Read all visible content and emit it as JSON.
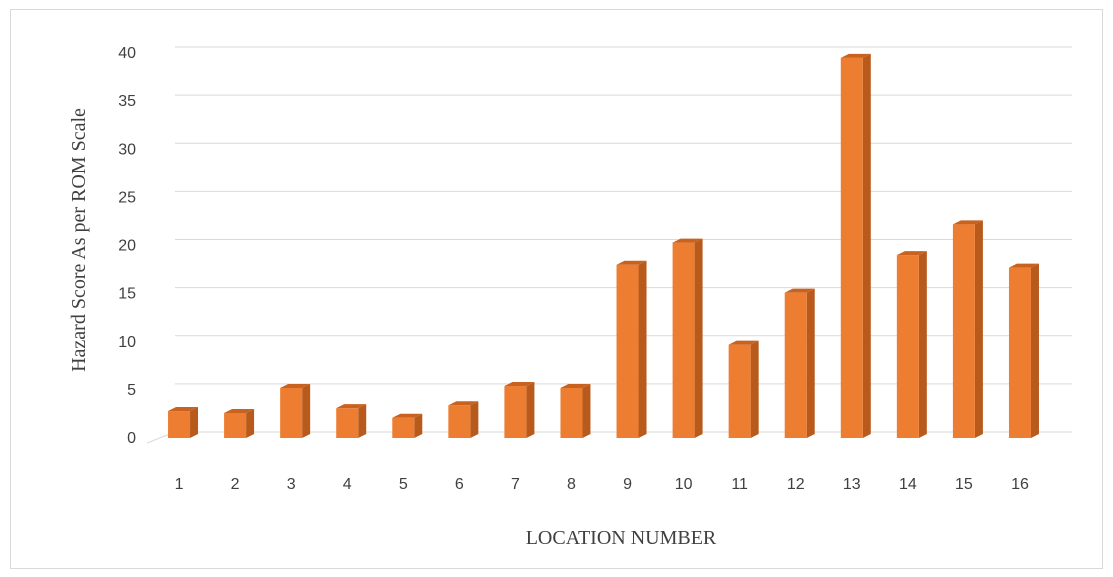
{
  "chart_data": {
    "type": "bar",
    "style": "3d-column",
    "categories": [
      "1",
      "2",
      "3",
      "4",
      "5",
      "6",
      "7",
      "8",
      "9",
      "10",
      "11",
      "12",
      "13",
      "14",
      "15",
      "16"
    ],
    "values": [
      2.8,
      2.6,
      5.2,
      3.1,
      2.1,
      3.4,
      5.4,
      5.2,
      18.0,
      20.3,
      9.7,
      15.1,
      39.5,
      19.0,
      22.2,
      17.7
    ],
    "title": "",
    "xlabel": "LOCATION NUMBER",
    "ylabel": "Hazard Score As per ROM Scale",
    "ylim": [
      0,
      40
    ],
    "yticks": [
      0,
      5,
      10,
      15,
      20,
      25,
      30,
      35,
      40
    ],
    "grid": true,
    "legend": "none",
    "colors": {
      "bar_front": "#ED7D31",
      "bar_side": "#B85A1C",
      "bar_top": "#C9621F",
      "grid": "#d9d9d9"
    }
  }
}
